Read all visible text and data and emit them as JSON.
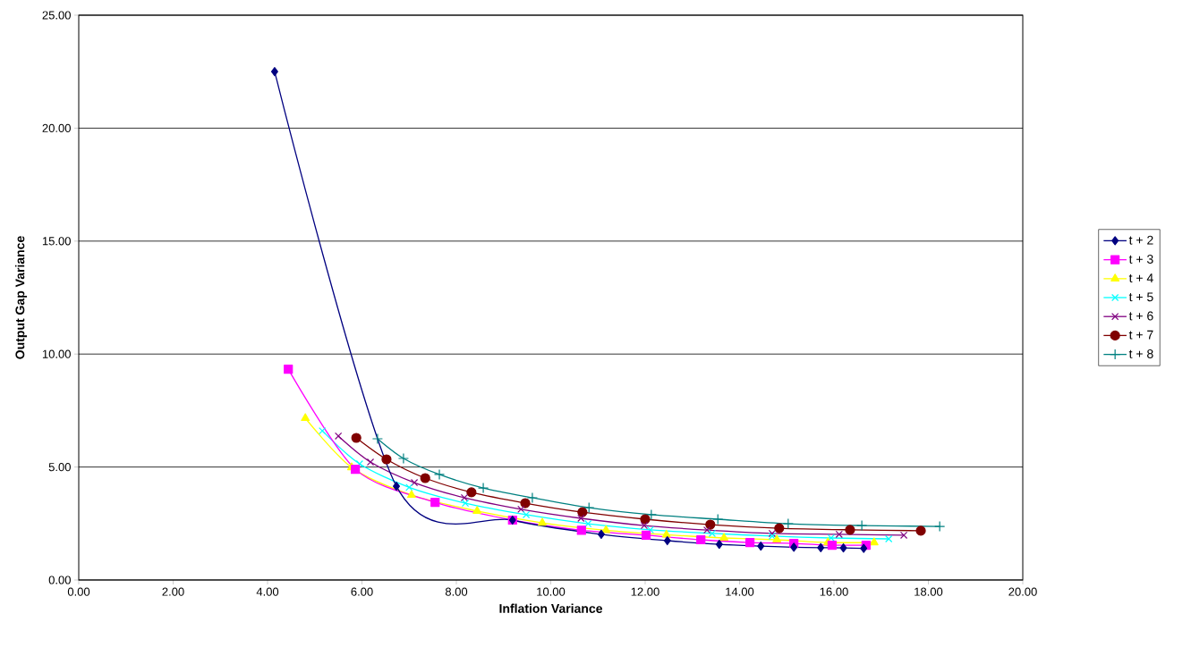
{
  "chart_data": {
    "type": "line",
    "xlabel": "Inflation Variance",
    "ylabel": "Output Gap Variance",
    "xlim": [
      0,
      20
    ],
    "ylim": [
      0,
      25
    ],
    "xticks": [
      {
        "value": 0,
        "label": "0.00"
      },
      {
        "value": 2,
        "label": "2.00"
      },
      {
        "value": 4,
        "label": "4.00"
      },
      {
        "value": 6,
        "label": "6.00"
      },
      {
        "value": 8,
        "label": "8.00"
      },
      {
        "value": 10,
        "label": "10.00"
      },
      {
        "value": 12,
        "label": "12.00"
      },
      {
        "value": 14,
        "label": "14.00"
      },
      {
        "value": 16,
        "label": "16.00"
      },
      {
        "value": 18,
        "label": "18.00"
      },
      {
        "value": 20,
        "label": "20.00"
      }
    ],
    "yticks": [
      {
        "value": 0,
        "label": "0.00"
      },
      {
        "value": 5,
        "label": "5.00"
      },
      {
        "value": 10,
        "label": "10.00"
      },
      {
        "value": 15,
        "label": "15.00"
      },
      {
        "value": 20,
        "label": "20.00"
      },
      {
        "value": 25,
        "label": "25.00"
      }
    ],
    "grid": "y",
    "legend": "right",
    "series": [
      {
        "name": "t + 2",
        "color": "#000080",
        "marker": "diamond",
        "x": [
          4.15,
          6.73,
          9.19,
          11.07,
          12.47,
          13.57,
          14.45,
          15.15,
          15.72,
          16.2,
          16.63
        ],
        "values": [
          22.5,
          4.15,
          2.65,
          2.02,
          1.74,
          1.58,
          1.5,
          1.45,
          1.43,
          1.42,
          1.4
        ]
      },
      {
        "name": "t + 3",
        "color": "#ff00ff",
        "marker": "square",
        "x": [
          4.44,
          5.86,
          7.55,
          9.19,
          10.65,
          12.02,
          13.18,
          14.22,
          15.15,
          15.96,
          16.68
        ],
        "values": [
          9.33,
          4.9,
          3.44,
          2.65,
          2.2,
          1.98,
          1.78,
          1.66,
          1.62,
          1.54,
          1.54
        ]
      },
      {
        "name": "t + 4",
        "color": "#ffff00",
        "marker": "triangle",
        "x": [
          4.8,
          5.78,
          7.05,
          8.44,
          9.82,
          11.17,
          12.45,
          13.67,
          14.79,
          15.87,
          16.85
        ],
        "values": [
          7.16,
          4.98,
          3.76,
          3.05,
          2.53,
          2.2,
          2.0,
          1.86,
          1.78,
          1.66,
          1.66
        ]
      },
      {
        "name": "t + 5",
        "color": "#00ffff",
        "marker": "cross",
        "x": [
          5.16,
          5.95,
          7.0,
          8.19,
          9.48,
          10.79,
          12.11,
          13.42,
          14.69,
          15.94,
          17.16
        ],
        "values": [
          6.6,
          5.14,
          4.1,
          3.4,
          2.89,
          2.49,
          2.22,
          2.06,
          1.94,
          1.86,
          1.82
        ]
      },
      {
        "name": "t + 6",
        "color": "#800080",
        "marker": "cross",
        "x": [
          5.5,
          6.18,
          7.11,
          8.17,
          9.37,
          10.64,
          11.98,
          13.31,
          14.69,
          16.11,
          17.48
        ],
        "values": [
          6.37,
          5.22,
          4.31,
          3.64,
          3.13,
          2.73,
          2.41,
          2.21,
          2.06,
          2.02,
          1.98
        ]
      },
      {
        "name": "t + 7",
        "color": "#800000",
        "marker": "circle",
        "x": [
          5.88,
          6.52,
          7.34,
          8.32,
          9.46,
          10.67,
          12.0,
          13.38,
          14.84,
          16.34,
          17.84
        ],
        "values": [
          6.29,
          5.34,
          4.51,
          3.88,
          3.4,
          3.0,
          2.69,
          2.45,
          2.29,
          2.22,
          2.18
        ]
      },
      {
        "name": "t + 8",
        "color": "#008080",
        "marker": "plus",
        "x": [
          6.33,
          6.88,
          7.64,
          8.57,
          9.61,
          10.81,
          12.13,
          13.54,
          15.03,
          16.59,
          18.24
        ],
        "values": [
          6.25,
          5.38,
          4.67,
          4.07,
          3.64,
          3.2,
          2.89,
          2.69,
          2.49,
          2.41,
          2.37
        ]
      }
    ]
  }
}
